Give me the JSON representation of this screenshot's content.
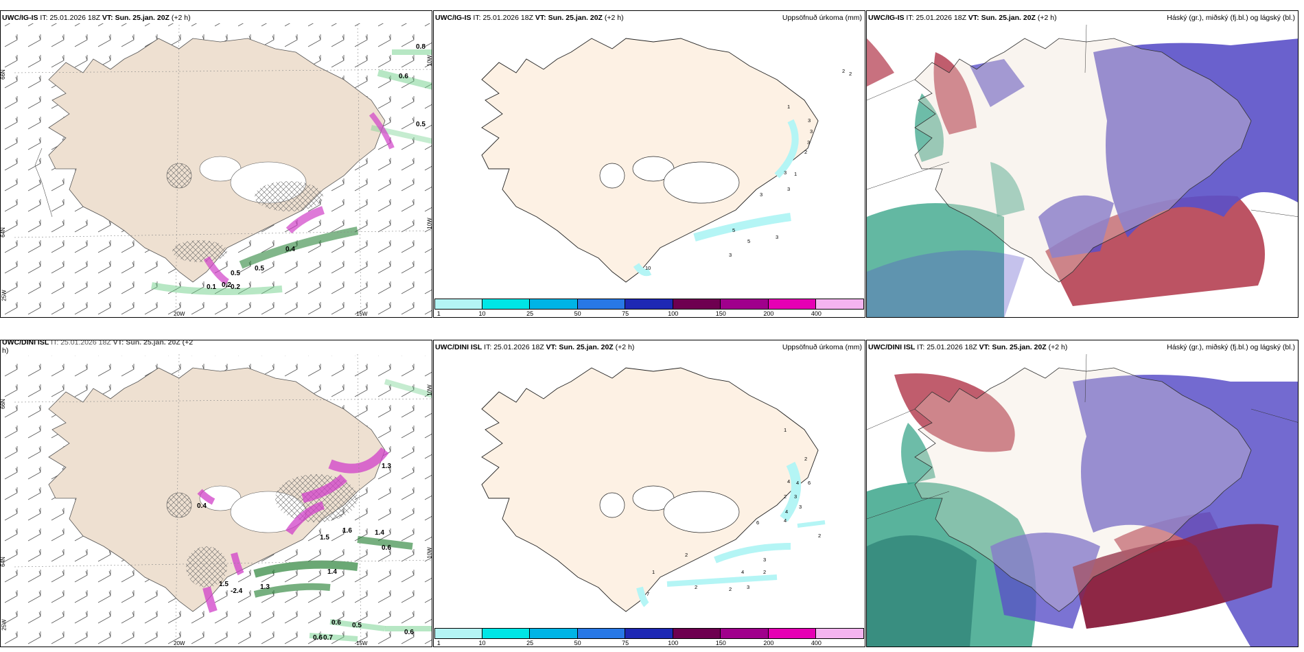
{
  "panels": [
    {
      "id": "igis-wind",
      "model": "UWC/IG-IS",
      "it_label": "IT:",
      "it_value": "25.01.2026 18Z",
      "vt_label": "VT:",
      "vt_value": "Sun. 25.jan. 20Z",
      "lead": "(+2 h)",
      "lat_labels": [
        "66N",
        "64N"
      ],
      "lon_labels": [
        "20W",
        "15W"
      ],
      "side_labels": [
        "25W",
        "10W",
        "10W"
      ],
      "values": [
        "0.8",
        "0.6",
        "0.5",
        "0.5",
        "0.4",
        "0.5",
        "0.2",
        "0.1",
        "0.2"
      ]
    },
    {
      "id": "igis-precip",
      "model": "UWC/IG-IS",
      "it_label": "IT:",
      "it_value": "25.01.2026 18Z",
      "vt_label": "VT:",
      "vt_value": "Sun. 25.jan. 20Z",
      "lead": "(+2 h)",
      "field_title": "Uppsöfnuð úrkoma (mm)",
      "values": [
        "2",
        "2",
        "1",
        "3",
        "3",
        "3",
        "2",
        "3",
        "1",
        "3",
        "3",
        "5",
        "5",
        "3",
        "3",
        "10"
      ]
    },
    {
      "id": "igis-clouds",
      "model": "UWC/IG-IS",
      "it_label": "IT:",
      "it_value": "25.01.2026 18Z",
      "vt_label": "VT:",
      "vt_value": "Sun. 25.jan. 20Z",
      "lead": "(+2 h)",
      "field_title": "Háský (gr.), miðský (fj.bl.) og lágský (bl.)"
    },
    {
      "id": "dini-wind",
      "model": "UWC/DINI ISL",
      "it_label": "IT:",
      "it_value": "25.01.2026 18Z",
      "vt_label": "VT:",
      "vt_value": "Sun. 25.jan. 20Z",
      "lead": "(+2",
      "lead_cont": "h)",
      "lat_labels": [
        "66N",
        "64N"
      ],
      "lon_labels": [
        "20W",
        "15W"
      ],
      "side_labels": [
        "25W",
        "10W",
        "10W"
      ],
      "values": [
        "1.3",
        "0.4",
        "1.6",
        "1.5",
        "1.4",
        "0.6",
        "-2.4",
        "1.5",
        "1.3",
        "1.4",
        "0.6",
        "0.5",
        "0.7",
        "0.6",
        "0.6"
      ]
    },
    {
      "id": "dini-precip",
      "model": "UWC/DINI ISL",
      "it_label": "IT:",
      "it_value": "25.01.2026 18Z",
      "vt_label": "VT:",
      "vt_value": "Sun. 25.jan. 20Z",
      "lead": "(+2 h)",
      "field_title": "Uppsöfnuð úrkoma (mm)",
      "values": [
        "1",
        "2",
        "4",
        "4",
        "6",
        "2",
        "3",
        "3",
        "4",
        "6",
        "4",
        "2",
        "2",
        "3",
        "4",
        "2",
        "2",
        "2",
        "3",
        "1",
        "7"
      ]
    },
    {
      "id": "dini-clouds",
      "model": "UWC/DINI ISL",
      "it_label": "IT:",
      "it_value": "25.01.2026 18Z",
      "vt_label": "VT:",
      "vt_value": "Sun. 25.jan. 20Z",
      "lead": "(+2 h)",
      "field_title": "Háský (gr.), miðský (fj.bl.) og lágský (bl.)"
    }
  ],
  "precip_scale": {
    "ticks": [
      "1",
      "10",
      "25",
      "50",
      "75",
      "100",
      "150",
      "200",
      "400"
    ],
    "colors": [
      "#b4f5f5",
      "#00e6e6",
      "#00b4e6",
      "#2878e6",
      "#1e28b4",
      "#6e0050",
      "#a0008c",
      "#e600b4",
      "#f5b4f0"
    ]
  },
  "colors": {
    "land": "#eee0d1",
    "land_precip": "#fdf1e4",
    "high_cloud": "#2fa083",
    "mid_cloud": "#b03548",
    "low_cloud": "#5a50c8",
    "wind_magenta": "#d040c8",
    "wind_green": "#1a7a2a"
  }
}
